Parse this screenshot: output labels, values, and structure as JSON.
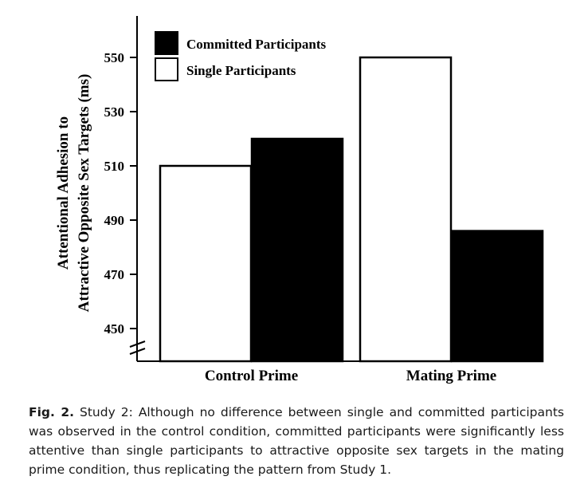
{
  "chart_data": {
    "type": "bar",
    "categories": [
      "Control Prime",
      "Mating Prime"
    ],
    "series": [
      {
        "name": "Single Participants",
        "fill": "#ffffff",
        "values": [
          510,
          550
        ]
      },
      {
        "name": "Committed Participants",
        "fill": "#000000",
        "values": [
          520,
          486
        ]
      }
    ],
    "ylabel_lines": [
      "Attentional Adhesion to",
      "Attractive Opposite Sex Targets (ms)"
    ],
    "yticks": [
      450,
      470,
      490,
      510,
      530,
      550
    ],
    "ylim": [
      440,
      565
    ],
    "axis_break": true,
    "legend": {
      "placement": "top-left",
      "entries": [
        {
          "label": "Committed Participants",
          "fill": "#000000"
        },
        {
          "label": "Single Participants",
          "fill": "#ffffff"
        }
      ]
    }
  },
  "caption": {
    "label": "Fig. 2.",
    "text": "Study 2: Although no difference between single and committed participants was observed in the control condition, committed participants were significantly less attentive than single participants to attractive opposite sex targets in the mating prime condition, thus replicating the pattern from Study 1."
  }
}
